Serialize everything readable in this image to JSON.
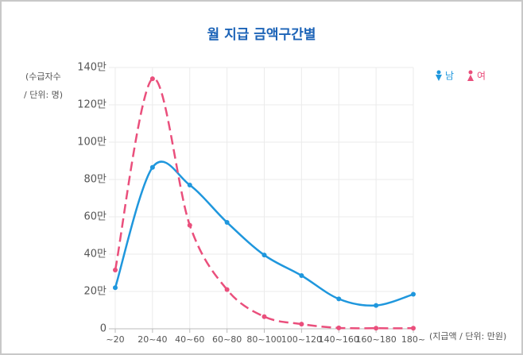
{
  "chart_data": {
    "type": "line",
    "title": "월 지급 금액구간별",
    "y_label_lines": [
      "(수급자수",
      "/ 단위: 명)"
    ],
    "x_label": "(지급액 / 단위: 만원)",
    "categories": [
      "~20",
      "20~40",
      "40~60",
      "60~80",
      "80~100",
      "100~120",
      "140~160",
      "160~180",
      "180~"
    ],
    "series": [
      {
        "name": "남",
        "color": "#1f97dd",
        "dash": false,
        "values": [
          220000,
          865000,
          770000,
          570000,
          395000,
          285000,
          160000,
          125000,
          185000
        ]
      },
      {
        "name": "여",
        "color": "#ea4f7c",
        "dash": true,
        "values": [
          315000,
          1340000,
          555000,
          210000,
          65000,
          25000,
          5000,
          3000,
          3000
        ]
      }
    ],
    "ylim": [
      0,
      1400000
    ],
    "yticks": [
      0,
      {
        "value": 200000,
        "label": "20만"
      },
      {
        "value": 400000,
        "label": "40만"
      },
      {
        "value": 600000,
        "label": "60만"
      },
      {
        "value": 800000,
        "label": "80만"
      },
      {
        "value": 1000000,
        "label": "100만"
      },
      {
        "value": 1200000,
        "label": "120만"
      },
      {
        "value": 1400000,
        "label": "140만"
      }
    ],
    "grid": true,
    "legend": "top-right"
  }
}
